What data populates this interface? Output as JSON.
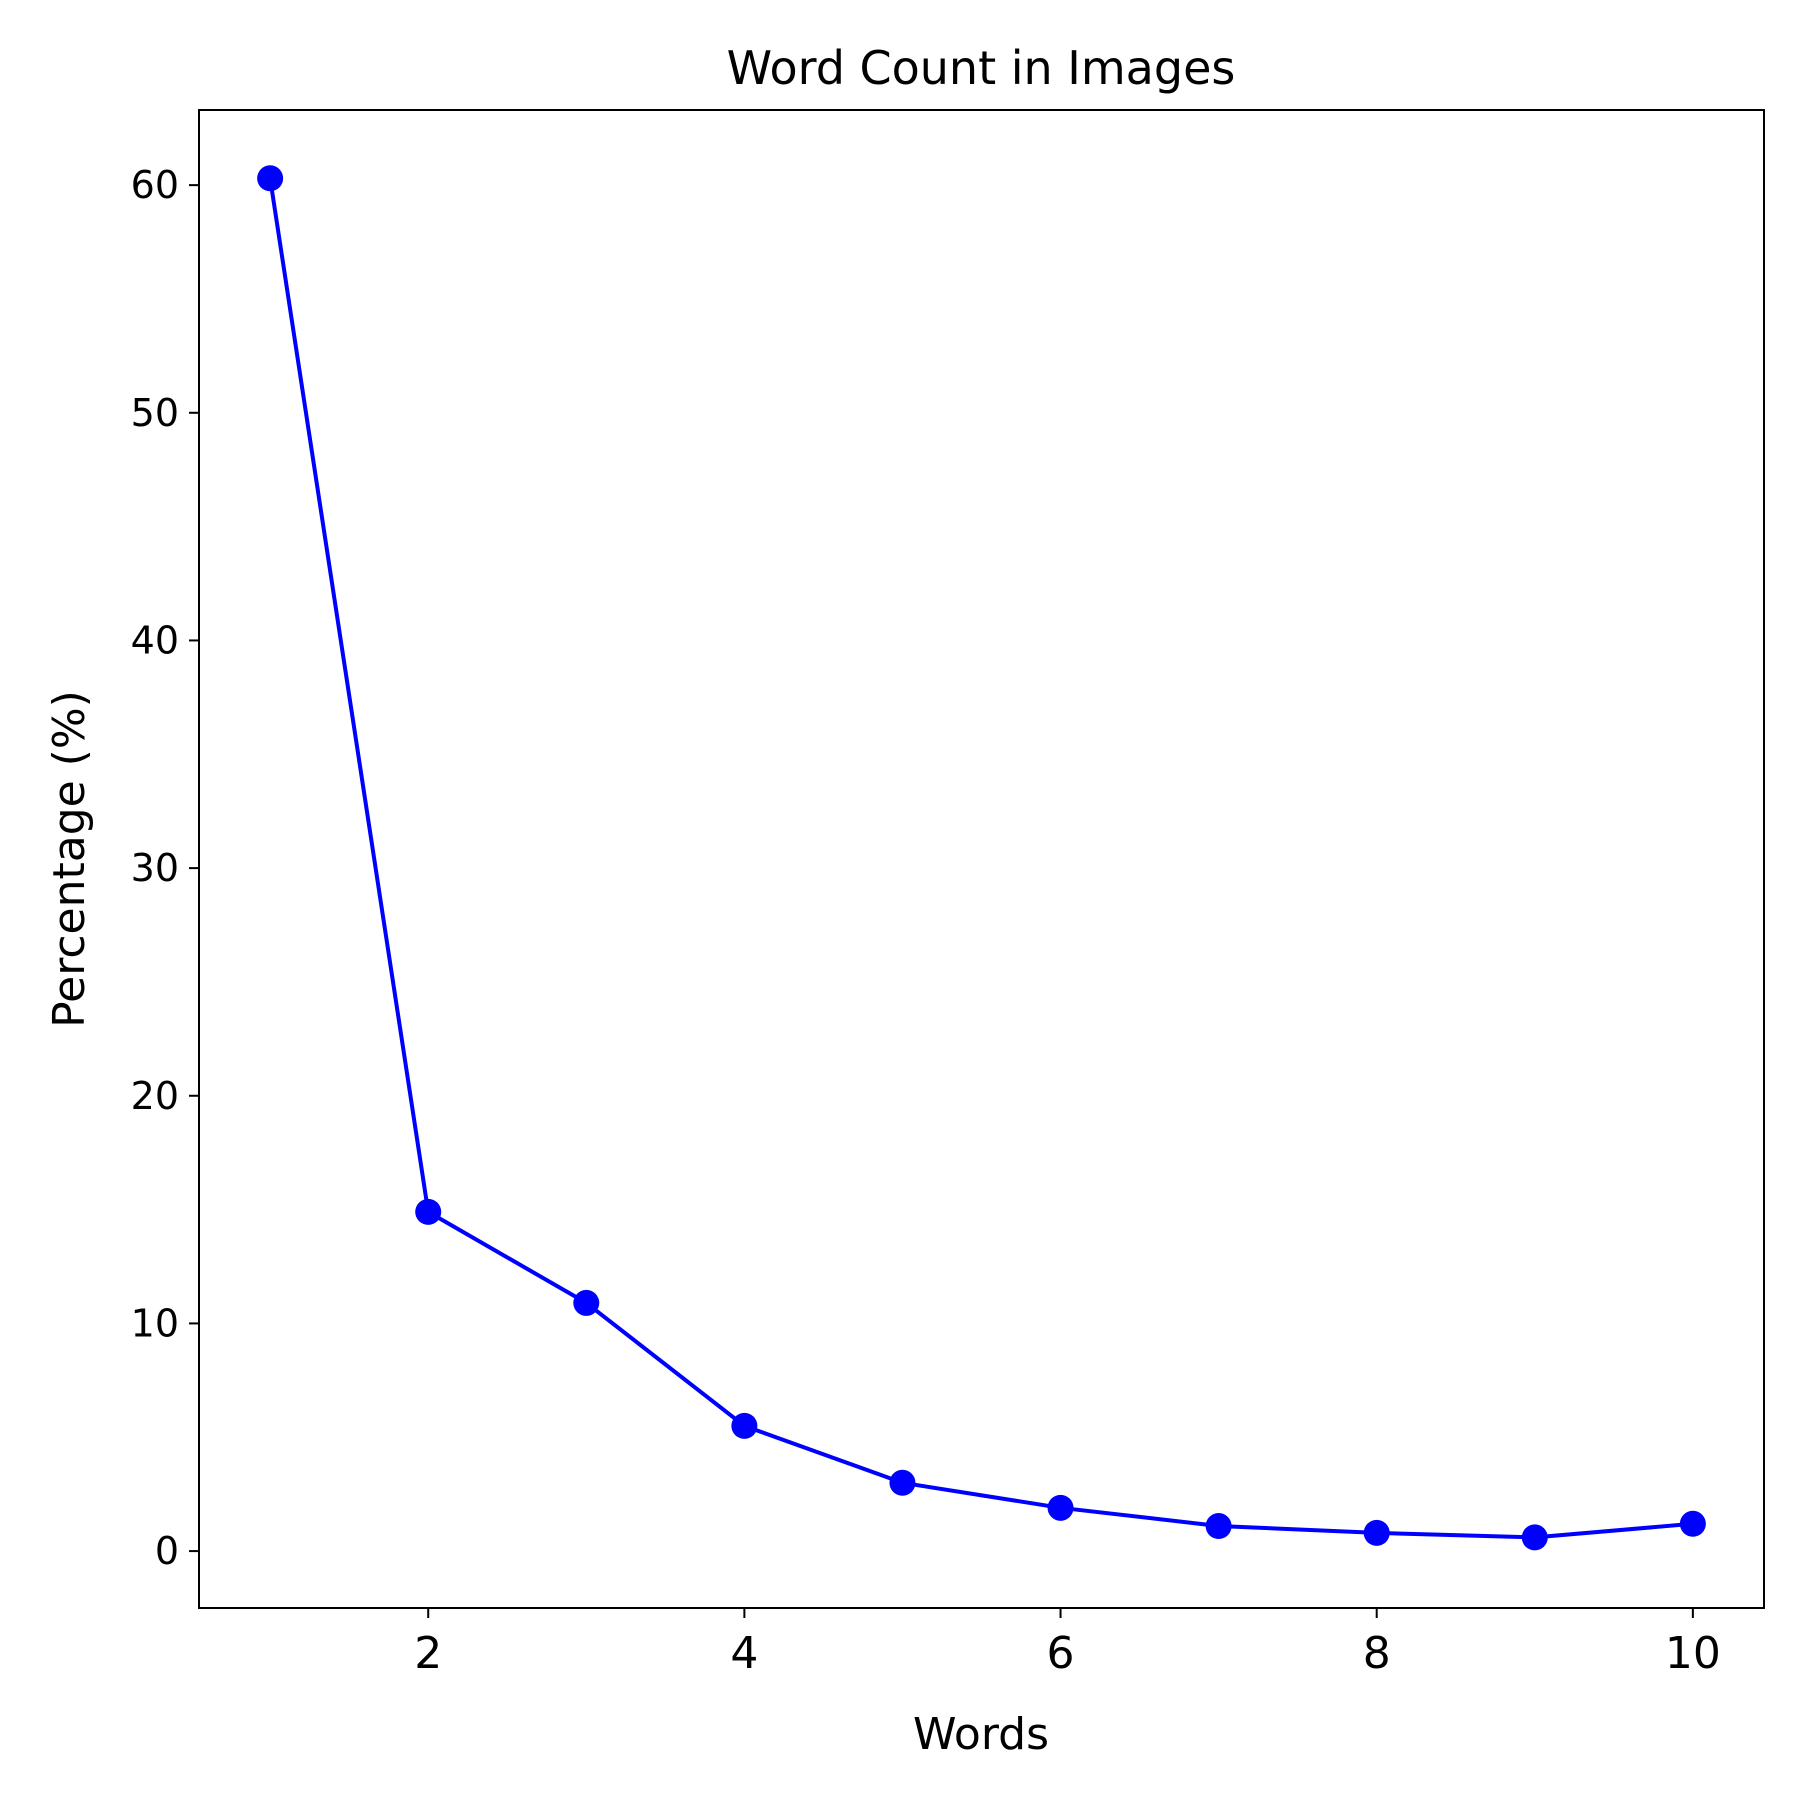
{
  "chart_data": {
    "type": "line",
    "title": "Word Count in Images",
    "xlabel": "Words",
    "ylabel": "Percentage (%)",
    "x": [
      1,
      2,
      3,
      4,
      5,
      6,
      7,
      8,
      9,
      10
    ],
    "series": [
      {
        "values": [
          60.3,
          14.9,
          10.9,
          5.5,
          3.0,
          1.9,
          1.1,
          0.8,
          0.6,
          1.2
        ],
        "color": "#0000ff",
        "marker": "circle"
      }
    ],
    "xlim": [
      0.55,
      10.45
    ],
    "ylim": [
      -2.5,
      63.3
    ],
    "xticks": [
      2,
      4,
      6,
      8,
      10
    ],
    "yticks": [
      0,
      10,
      20,
      30,
      40,
      50,
      60
    ],
    "grid": false,
    "legend": "none"
  }
}
